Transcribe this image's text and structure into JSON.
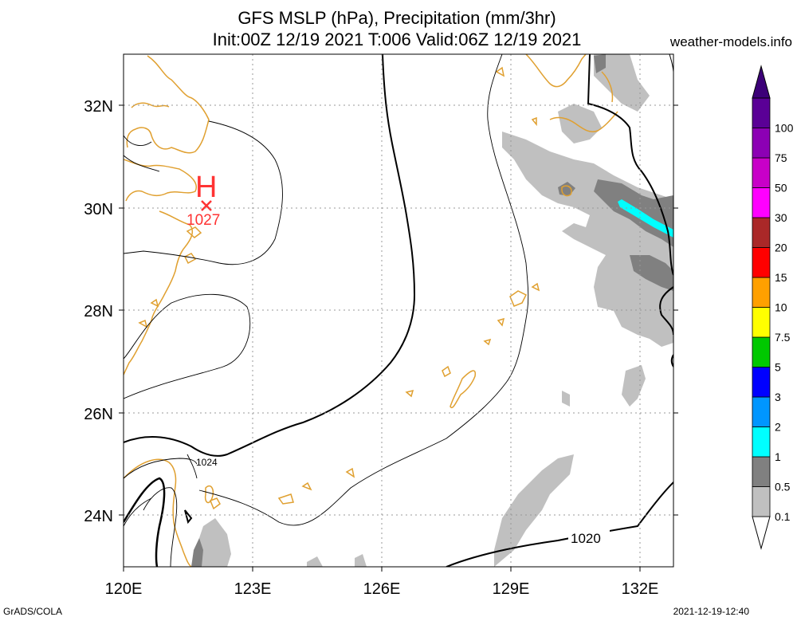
{
  "title_line1": "GFS MSLP (hPa), Precipitation (mm/3hr)",
  "title_line2": "Init:00Z 12/19 2021 T:006 Valid:06Z 12/19 2021",
  "site": "weather-models.info",
  "footer_left": "GrADS/COLA",
  "footer_right": "2021-12-19-12:40",
  "map": {
    "lat_labels": [
      "32N",
      "30N",
      "28N",
      "26N",
      "24N"
    ],
    "lon_labels": [
      "120E",
      "123E",
      "126E",
      "129E",
      "132E"
    ],
    "high_center": {
      "symbol": "H",
      "value": "1027",
      "color": "#ff3333"
    },
    "isobar_labels": [
      "1024",
      "1020"
    ],
    "coastline_color": "#e0a030",
    "isobar_color": "#000000"
  },
  "colorbar": {
    "labels": [
      "0.1",
      "0.5",
      "1",
      "2",
      "3",
      "5",
      "7.5",
      "10",
      "15",
      "20",
      "30",
      "50",
      "75",
      "100"
    ],
    "colors": [
      "#c0c0c0",
      "#808080",
      "#00ffff",
      "#0096ff",
      "#0000ff",
      "#00c800",
      "#ffff00",
      "#ffa000",
      "#ff0000",
      "#aa2828",
      "#ff00ff",
      "#c800c8",
      "#8c00b4",
      "#5a0096"
    ]
  }
}
